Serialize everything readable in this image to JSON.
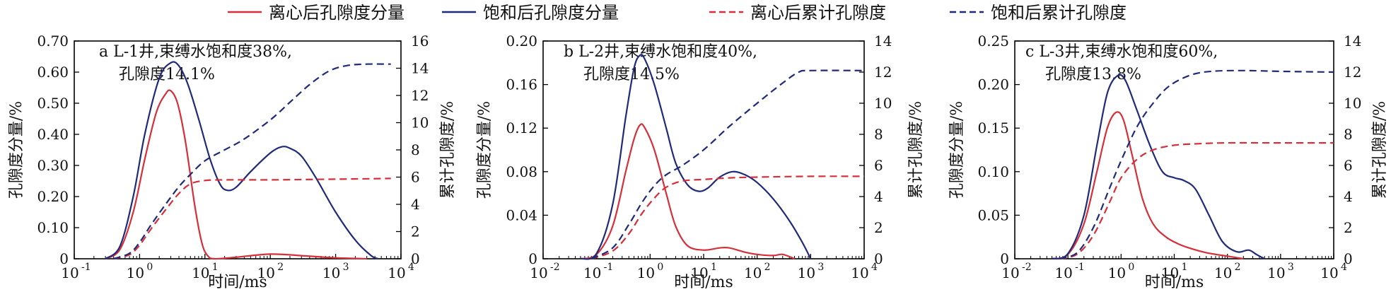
{
  "legend": {
    "items": [
      {
        "label": "离心后孔隙度分量",
        "color": "#d62f3a",
        "dash": "solid"
      },
      {
        "label": "饱和后孔隙度分量",
        "color": "#1f2a7a",
        "dash": "solid"
      },
      {
        "label": "离心后累计孔隙度",
        "color": "#d62f3a",
        "dash": "dashed"
      },
      {
        "label": "饱和后累计孔隙度",
        "color": "#1f2a7a",
        "dash": "dashed"
      }
    ]
  },
  "chart_data": [
    {
      "type": "line",
      "panel": "a",
      "annotation_line1": "a L-1井,束缚水饱和度38%,",
      "annotation_line2": "孔隙度14.1%",
      "xlabel": "时间/ms",
      "ylabel_left": "孔隙度分量/%",
      "ylabel_right": "累计孔隙度/%",
      "x_scale": "log",
      "xlim_exp": [
        -1,
        4
      ],
      "x_tick_labels": [
        {
          "base": "10",
          "exp": "-1"
        },
        {
          "base": "10",
          "exp": "0"
        },
        {
          "base": "10",
          "exp": "1"
        },
        {
          "base": "10",
          "exp": "2"
        },
        {
          "base": "10",
          "exp": "3"
        },
        {
          "base": "10",
          "exp": "4"
        }
      ],
      "ylim_left": [
        0,
        0.7
      ],
      "y_left_ticks": [
        "0",
        "0.10",
        "0.20",
        "0.30",
        "0.40",
        "0.50",
        "0.60",
        "0.70"
      ],
      "ylim_right": [
        0,
        16
      ],
      "y_right_ticks": [
        "0",
        "2",
        "4",
        "6",
        "8",
        "10",
        "12",
        "14",
        "16"
      ],
      "series": [
        {
          "name": "离心后孔隙度分量",
          "axis": "left",
          "color": "#d62f3a",
          "dash": "solid",
          "points": [
            [
              0.3,
              0
            ],
            [
              0.5,
              0.03
            ],
            [
              0.8,
              0.15
            ],
            [
              1.2,
              0.32
            ],
            [
              1.8,
              0.47
            ],
            [
              2.5,
              0.53
            ],
            [
              3.0,
              0.54
            ],
            [
              3.8,
              0.5
            ],
            [
              5,
              0.38
            ],
            [
              7,
              0.17
            ],
            [
              9,
              0.05
            ],
            [
              11,
              0.01
            ],
            [
              14,
              0
            ],
            [
              30,
              0.005
            ],
            [
              100,
              0.015
            ],
            [
              300,
              0.01
            ],
            [
              1000,
              0.003
            ],
            [
              3000,
              0
            ]
          ]
        },
        {
          "name": "饱和后孔隙度分量",
          "axis": "left",
          "color": "#1f2a7a",
          "dash": "solid",
          "points": [
            [
              0.3,
              0
            ],
            [
              0.5,
              0.04
            ],
            [
              0.8,
              0.2
            ],
            [
              1.2,
              0.4
            ],
            [
              2,
              0.58
            ],
            [
              3,
              0.63
            ],
            [
              4,
              0.62
            ],
            [
              5.5,
              0.56
            ],
            [
              8,
              0.45
            ],
            [
              12,
              0.32
            ],
            [
              17,
              0.24
            ],
            [
              22,
              0.22
            ],
            [
              30,
              0.23
            ],
            [
              50,
              0.28
            ],
            [
              100,
              0.34
            ],
            [
              150,
              0.36
            ],
            [
              200,
              0.355
            ],
            [
              300,
              0.33
            ],
            [
              500,
              0.26
            ],
            [
              1000,
              0.15
            ],
            [
              2000,
              0.06
            ],
            [
              3500,
              0.01
            ],
            [
              4500,
              0
            ]
          ]
        },
        {
          "name": "离心后累计孔隙度",
          "axis": "right",
          "color": "#d62f3a",
          "dash": "dashed",
          "points": [
            [
              0.4,
              0
            ],
            [
              0.7,
              0.3
            ],
            [
              1,
              1
            ],
            [
              1.5,
              2.2
            ],
            [
              2.5,
              3.6
            ],
            [
              4,
              4.8
            ],
            [
              6,
              5.5
            ],
            [
              10,
              5.75
            ],
            [
              20,
              5.8
            ],
            [
              100,
              5.8
            ],
            [
              1000,
              5.85
            ],
            [
              7000,
              5.9
            ]
          ]
        },
        {
          "name": "饱和后累计孔隙度",
          "axis": "right",
          "color": "#1f2a7a",
          "dash": "dashed",
          "points": [
            [
              0.4,
              0
            ],
            [
              0.7,
              0.4
            ],
            [
              1,
              1.2
            ],
            [
              1.5,
              2.5
            ],
            [
              2.5,
              4
            ],
            [
              4,
              5.3
            ],
            [
              6,
              6.2
            ],
            [
              10,
              7.2
            ],
            [
              20,
              8
            ],
            [
              40,
              8.8
            ],
            [
              100,
              10.2
            ],
            [
              200,
              11.5
            ],
            [
              400,
              12.8
            ],
            [
              800,
              13.8
            ],
            [
              1500,
              14.2
            ],
            [
              3000,
              14.3
            ],
            [
              7000,
              14.3
            ]
          ]
        }
      ]
    },
    {
      "type": "line",
      "panel": "b",
      "annotation_line1": "b L-2井,束缚水饱和度40%,",
      "annotation_line2": "孔隙度14.5%",
      "xlabel": "时间/ms",
      "ylabel_left": "孔隙度分量/%",
      "ylabel_right": "累计孔隙度/%",
      "x_scale": "log",
      "xlim_exp": [
        -2,
        4
      ],
      "x_tick_labels": [
        {
          "base": "10",
          "exp": "-2"
        },
        {
          "base": "10",
          "exp": "-1"
        },
        {
          "base": "10",
          "exp": "0"
        },
        {
          "base": "10",
          "exp": "1"
        },
        {
          "base": "10",
          "exp": "2"
        },
        {
          "base": "10",
          "exp": "3"
        },
        {
          "base": "10",
          "exp": "4"
        }
      ],
      "ylim_left": [
        0,
        0.2
      ],
      "y_left_ticks": [
        "0",
        "0.04",
        "0.08",
        "0.12",
        "0.16",
        "0.20"
      ],
      "ylim_right": [
        0,
        14
      ],
      "y_right_ticks": [
        "0",
        "2",
        "4",
        "6",
        "8",
        "10",
        "12",
        "14"
      ],
      "series": [
        {
          "name": "离心后孔隙度分量",
          "axis": "left",
          "color": "#d62f3a",
          "dash": "solid",
          "points": [
            [
              0.05,
              0
            ],
            [
              0.1,
              0.004
            ],
            [
              0.2,
              0.03
            ],
            [
              0.35,
              0.08
            ],
            [
              0.5,
              0.11
            ],
            [
              0.65,
              0.123
            ],
            [
              0.8,
              0.12
            ],
            [
              1.2,
              0.1
            ],
            [
              2,
              0.06
            ],
            [
              3,
              0.03
            ],
            [
              5,
              0.012
            ],
            [
              10,
              0.008
            ],
            [
              20,
              0.01
            ],
            [
              30,
              0.01
            ],
            [
              60,
              0.006
            ],
            [
              100,
              0.004
            ],
            [
              200,
              0.003
            ],
            [
              300,
              0.004
            ],
            [
              500,
              0
            ]
          ]
        },
        {
          "name": "饱和后孔隙度分量",
          "axis": "left",
          "color": "#1f2a7a",
          "dash": "solid",
          "points": [
            [
              0.05,
              0
            ],
            [
              0.1,
              0.005
            ],
            [
              0.2,
              0.05
            ],
            [
              0.35,
              0.13
            ],
            [
              0.5,
              0.175
            ],
            [
              0.65,
              0.187
            ],
            [
              0.8,
              0.183
            ],
            [
              1.2,
              0.16
            ],
            [
              2,
              0.12
            ],
            [
              3,
              0.088
            ],
            [
              5,
              0.068
            ],
            [
              8,
              0.062
            ],
            [
              12,
              0.065
            ],
            [
              20,
              0.075
            ],
            [
              35,
              0.08
            ],
            [
              60,
              0.077
            ],
            [
              100,
              0.07
            ],
            [
              200,
              0.055
            ],
            [
              400,
              0.035
            ],
            [
              700,
              0.015
            ],
            [
              1000,
              0
            ]
          ]
        },
        {
          "name": "离心后累计孔隙度",
          "axis": "right",
          "color": "#d62f3a",
          "dash": "dashed",
          "points": [
            [
              0.08,
              0
            ],
            [
              0.2,
              0.5
            ],
            [
              0.4,
              1.6
            ],
            [
              0.7,
              2.9
            ],
            [
              1.2,
              3.9
            ],
            [
              2,
              4.6
            ],
            [
              4,
              5
            ],
            [
              10,
              5.1
            ],
            [
              30,
              5.2
            ],
            [
              100,
              5.25
            ],
            [
              1000,
              5.3
            ],
            [
              10000,
              5.3
            ]
          ]
        },
        {
          "name": "饱和后累计孔隙度",
          "axis": "right",
          "color": "#1f2a7a",
          "dash": "dashed",
          "points": [
            [
              0.08,
              0
            ],
            [
              0.2,
              0.7
            ],
            [
              0.4,
              2.2
            ],
            [
              0.7,
              3.6
            ],
            [
              1.2,
              4.7
            ],
            [
              2,
              5.4
            ],
            [
              4,
              6
            ],
            [
              10,
              7
            ],
            [
              30,
              8.5
            ],
            [
              100,
              10
            ],
            [
              300,
              11.3
            ],
            [
              600,
              12
            ],
            [
              1000,
              12.1
            ],
            [
              10000,
              12.1
            ]
          ]
        }
      ]
    },
    {
      "type": "line",
      "panel": "c",
      "annotation_line1": "c L-3井,束缚水饱和度60%,",
      "annotation_line2": "孔隙度13.8%",
      "xlabel": "时间/ms",
      "ylabel_left": "孔隙度分量/%",
      "ylabel_right": "累计孔隙度/%",
      "x_scale": "log",
      "xlim_exp": [
        -2,
        4
      ],
      "x_tick_labels": [
        {
          "base": "10",
          "exp": "-2"
        },
        {
          "base": "10",
          "exp": "-1"
        },
        {
          "base": "10",
          "exp": "0"
        },
        {
          "base": "10",
          "exp": "1"
        },
        {
          "base": "10",
          "exp": "2"
        },
        {
          "base": "10",
          "exp": "3"
        },
        {
          "base": "10",
          "exp": "4"
        }
      ],
      "ylim_left": [
        0,
        0.25
      ],
      "y_left_ticks": [
        "0",
        "0.05",
        "0.10",
        "0.15",
        "0.20",
        "0.25"
      ],
      "ylim_right": [
        0,
        14
      ],
      "y_right_ticks": [
        "0",
        "2",
        "4",
        "6",
        "8",
        "10",
        "12",
        "14"
      ],
      "series": [
        {
          "name": "离心后孔隙度分量",
          "axis": "left",
          "color": "#d62f3a",
          "dash": "solid",
          "points": [
            [
              0.05,
              0
            ],
            [
              0.1,
              0.005
            ],
            [
              0.2,
              0.04
            ],
            [
              0.35,
              0.1
            ],
            [
              0.55,
              0.15
            ],
            [
              0.8,
              0.168
            ],
            [
              1.1,
              0.16
            ],
            [
              1.6,
              0.12
            ],
            [
              2.5,
              0.07
            ],
            [
              4,
              0.04
            ],
            [
              7,
              0.025
            ],
            [
              12,
              0.017
            ],
            [
              20,
              0.012
            ],
            [
              40,
              0.007
            ],
            [
              100,
              0.003
            ],
            [
              200,
              0
            ]
          ]
        },
        {
          "name": "饱和后孔隙度分量",
          "axis": "left",
          "color": "#1f2a7a",
          "dash": "solid",
          "points": [
            [
              0.05,
              0
            ],
            [
              0.1,
              0.006
            ],
            [
              0.2,
              0.05
            ],
            [
              0.35,
              0.13
            ],
            [
              0.55,
              0.19
            ],
            [
              0.85,
              0.21
            ],
            [
              1.2,
              0.205
            ],
            [
              2,
              0.17
            ],
            [
              3.5,
              0.13
            ],
            [
              6,
              0.1
            ],
            [
              10,
              0.093
            ],
            [
              15,
              0.09
            ],
            [
              25,
              0.08
            ],
            [
              45,
              0.05
            ],
            [
              80,
              0.02
            ],
            [
              150,
              0.008
            ],
            [
              250,
              0.01
            ],
            [
              350,
              0.005
            ],
            [
              500,
              0
            ]
          ]
        },
        {
          "name": "离心后累计孔隙度",
          "axis": "right",
          "color": "#d62f3a",
          "dash": "dashed",
          "points": [
            [
              0.07,
              0
            ],
            [
              0.15,
              0.3
            ],
            [
              0.3,
              1.5
            ],
            [
              0.6,
              3.6
            ],
            [
              1,
              5.2
            ],
            [
              2,
              6.4
            ],
            [
              4,
              7
            ],
            [
              10,
              7.3
            ],
            [
              30,
              7.4
            ],
            [
              100,
              7.45
            ],
            [
              1000,
              7.45
            ],
            [
              10000,
              7.45
            ]
          ]
        },
        {
          "name": "饱和后累计孔隙度",
          "axis": "right",
          "color": "#1f2a7a",
          "dash": "dashed",
          "points": [
            [
              0.07,
              0
            ],
            [
              0.15,
              0.4
            ],
            [
              0.3,
              2
            ],
            [
              0.6,
              4.5
            ],
            [
              1,
              6.3
            ],
            [
              2,
              8.5
            ],
            [
              4,
              10
            ],
            [
              8,
              11.1
            ],
            [
              20,
              11.8
            ],
            [
              50,
              12.05
            ],
            [
              200,
              12.1
            ],
            [
              1000,
              12.05
            ],
            [
              10000,
              12
            ]
          ]
        }
      ]
    }
  ]
}
